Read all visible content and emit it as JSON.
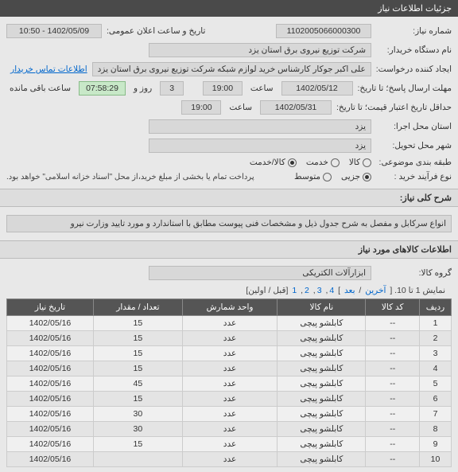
{
  "header": {
    "title": "جزئیات اطلاعات نیاز"
  },
  "fields": {
    "need_number": {
      "label": "شماره نیاز:",
      "value": "1102005066000300"
    },
    "announce": {
      "label": "تاریخ و ساعت اعلان عمومی:",
      "value": "1402/05/09 - 10:50"
    },
    "buyer_org": {
      "label": "نام دستگاه خریدار:",
      "value": "شرکت توزیع نیروی برق استان یزد"
    },
    "requester": {
      "label": "ایجاد کننده درخواست:",
      "value": "علی اکبر جوکار  کارشناس خرید لوازم شبکه  شرکت توزیع نیروی برق استان یزد"
    },
    "buyer_contact_link": "اطلاعات تماس خریدار",
    "deadline": {
      "label": "مهلت ارسال پاسخ؛ تا تاریخ:",
      "date": "1402/05/12",
      "time_label": "ساعت",
      "time": "19:00"
    },
    "remaining": {
      "days": "3",
      "days_label": "روز و",
      "time": "07:58:29",
      "suffix": "ساعت باقی مانده"
    },
    "validity": {
      "label": "حداقل تاریخ اعتبار قیمت؛ تا تاریخ:",
      "date": "1402/05/31",
      "time_label": "ساعت",
      "time": "19:00"
    },
    "province": {
      "label": "استان محل اجرا:",
      "value": "یزد"
    },
    "city": {
      "label": "شهر محل تحویل:",
      "value": "یزد"
    },
    "grouping": {
      "label": "طبقه بندی موضوعی:",
      "goods": "کالا",
      "service": "خدمت",
      "goods_service": "کالا/خدمت"
    },
    "purchase_type": {
      "label": "نوع فرآیند خرید :",
      "minor": "جزیی",
      "medium": "متوسط"
    },
    "payment_note": "پرداخت تمام یا بخشی از مبلغ خرید،از محل \"اسناد خزانه اسلامی\" خواهد بود."
  },
  "need_summary": {
    "title": "شرح کلی نیاز:",
    "text": "انواع سرکابل و مفصل به شرح جدول ذیل و مشخصات فنی پیوست مطابق با استاندارد و مورد تایید وزارت نیرو"
  },
  "goods_section": {
    "title": "اطلاعات کالاهای مورد نیاز",
    "group_label": "گروه کالا:",
    "group_value": "ابزارآلات الکتریکی"
  },
  "pagination": {
    "text_prefix": "نمایش 1 تا 10. [",
    "next": "آخرین",
    "sep": " / ",
    "prev": "بعد",
    "pages": [
      "4",
      "3",
      "2",
      "1"
    ],
    "suffix": " [قبل / اولین]"
  },
  "table": {
    "columns": [
      "ردیف",
      "کد کالا",
      "نام کالا",
      "واحد شمارش",
      "تعداد / مقدار",
      "تاریخ نیاز"
    ],
    "rows": [
      [
        "1",
        "--",
        "کابلشو پیچی",
        "عدد",
        "15",
        "1402/05/16"
      ],
      [
        "2",
        "--",
        "کابلشو پیچی",
        "عدد",
        "15",
        "1402/05/16"
      ],
      [
        "3",
        "--",
        "کابلشو پیچی",
        "عدد",
        "15",
        "1402/05/16"
      ],
      [
        "4",
        "--",
        "کابلشو پیچی",
        "عدد",
        "15",
        "1402/05/16"
      ],
      [
        "5",
        "--",
        "کابلشو پیچی",
        "عدد",
        "45",
        "1402/05/16"
      ],
      [
        "6",
        "--",
        "کابلشو پیچی",
        "عدد",
        "15",
        "1402/05/16"
      ],
      [
        "7",
        "--",
        "کابلشو پیچی",
        "عدد",
        "30",
        "1402/05/16"
      ],
      [
        "8",
        "--",
        "کابلشو پیچی",
        "عدد",
        "30",
        "1402/05/16"
      ],
      [
        "9",
        "--",
        "کابلشو پیچی",
        "عدد",
        "15",
        "1402/05/16"
      ],
      [
        "10",
        "--",
        "کابلشو پیچی",
        "عدد",
        "",
        "1402/05/16"
      ]
    ]
  }
}
